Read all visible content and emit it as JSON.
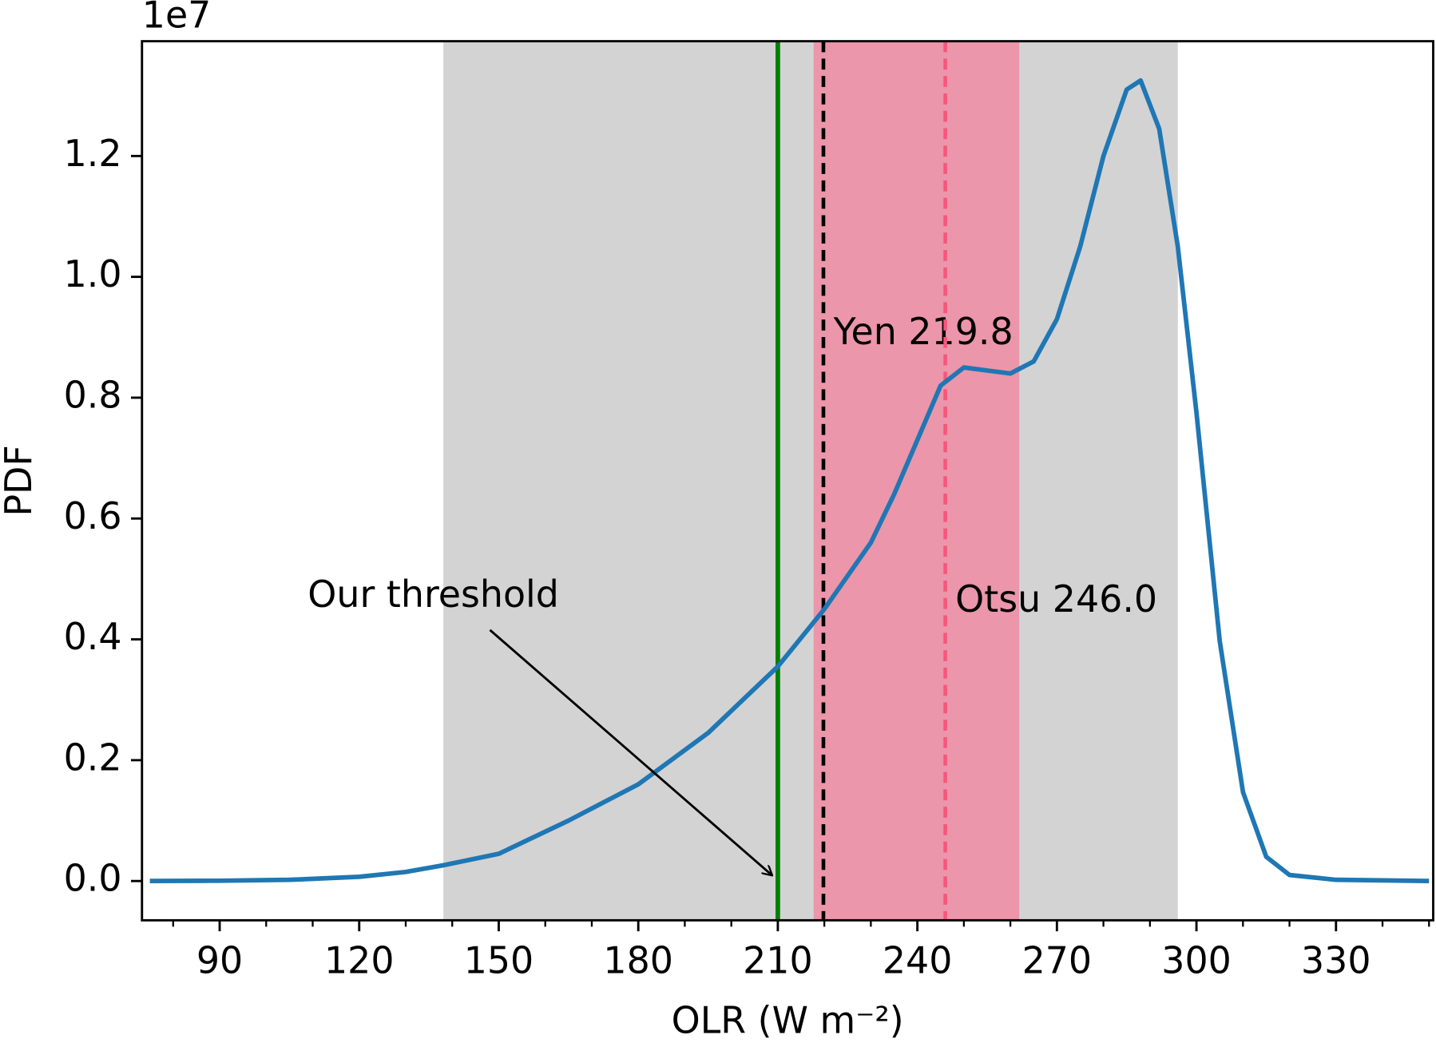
{
  "chart_data": {
    "type": "line",
    "xlabel": "OLR (W m⁻²)",
    "ylabel": "PDF",
    "offset_text": "1e7",
    "xlim": [
      73.3,
      350.9
    ],
    "ylim": [
      -0.065,
      1.39
    ],
    "xticks": [
      90,
      120,
      150,
      180,
      210,
      240,
      270,
      300,
      330
    ],
    "xminorticks": [
      80,
      100,
      110,
      130,
      140,
      160,
      170,
      190,
      200,
      220,
      230,
      250,
      260,
      280,
      290,
      310,
      320,
      340,
      350
    ],
    "yticks": [
      {
        "value": 0,
        "label": "0.0"
      },
      0.2,
      0.4,
      0.6,
      0.8,
      {
        "value": 1,
        "label": "1.0"
      },
      1.2
    ],
    "x": [
      75,
      90,
      105,
      120,
      130,
      138,
      150,
      165,
      180,
      195,
      210,
      220,
      230,
      235,
      240,
      245,
      250,
      255,
      260,
      265,
      270,
      275,
      280,
      285,
      288,
      292,
      296,
      300,
      305,
      310,
      315,
      320,
      330,
      350
    ],
    "series": [
      {
        "color": "#1f77b4",
        "values": [
          0,
          0.0005,
          0.002,
          0.007,
          0.015,
          0.026,
          0.045,
          0.1,
          0.16,
          0.245,
          0.355,
          0.45,
          0.56,
          0.64,
          0.73,
          0.82,
          0.85,
          0.845,
          0.84,
          0.86,
          0.93,
          1.05,
          1.2,
          1.31,
          1.325,
          1.245,
          1.05,
          0.775,
          0.397,
          0.147,
          0.04,
          0.01,
          0.002,
          0
        ]
      }
    ],
    "spans": [
      {
        "range": [
          138.1,
          296
        ],
        "color": "#d3d3d3"
      },
      {
        "range": [
          217.7,
          261.9
        ],
        "color": "#eb96aa"
      }
    ],
    "vlines": [
      {
        "x": 210,
        "color": "#008000",
        "style": "solid"
      },
      {
        "x": 219.8,
        "color": "#000000",
        "style": "dashed",
        "label": "Yen 219.8"
      },
      {
        "x": 246.0,
        "color": "#f7567c",
        "style": "dashed",
        "label": "Otsu 246.0"
      }
    ],
    "annotation": {
      "text": "Our threshold",
      "target": [
        210,
        0
      ]
    }
  }
}
